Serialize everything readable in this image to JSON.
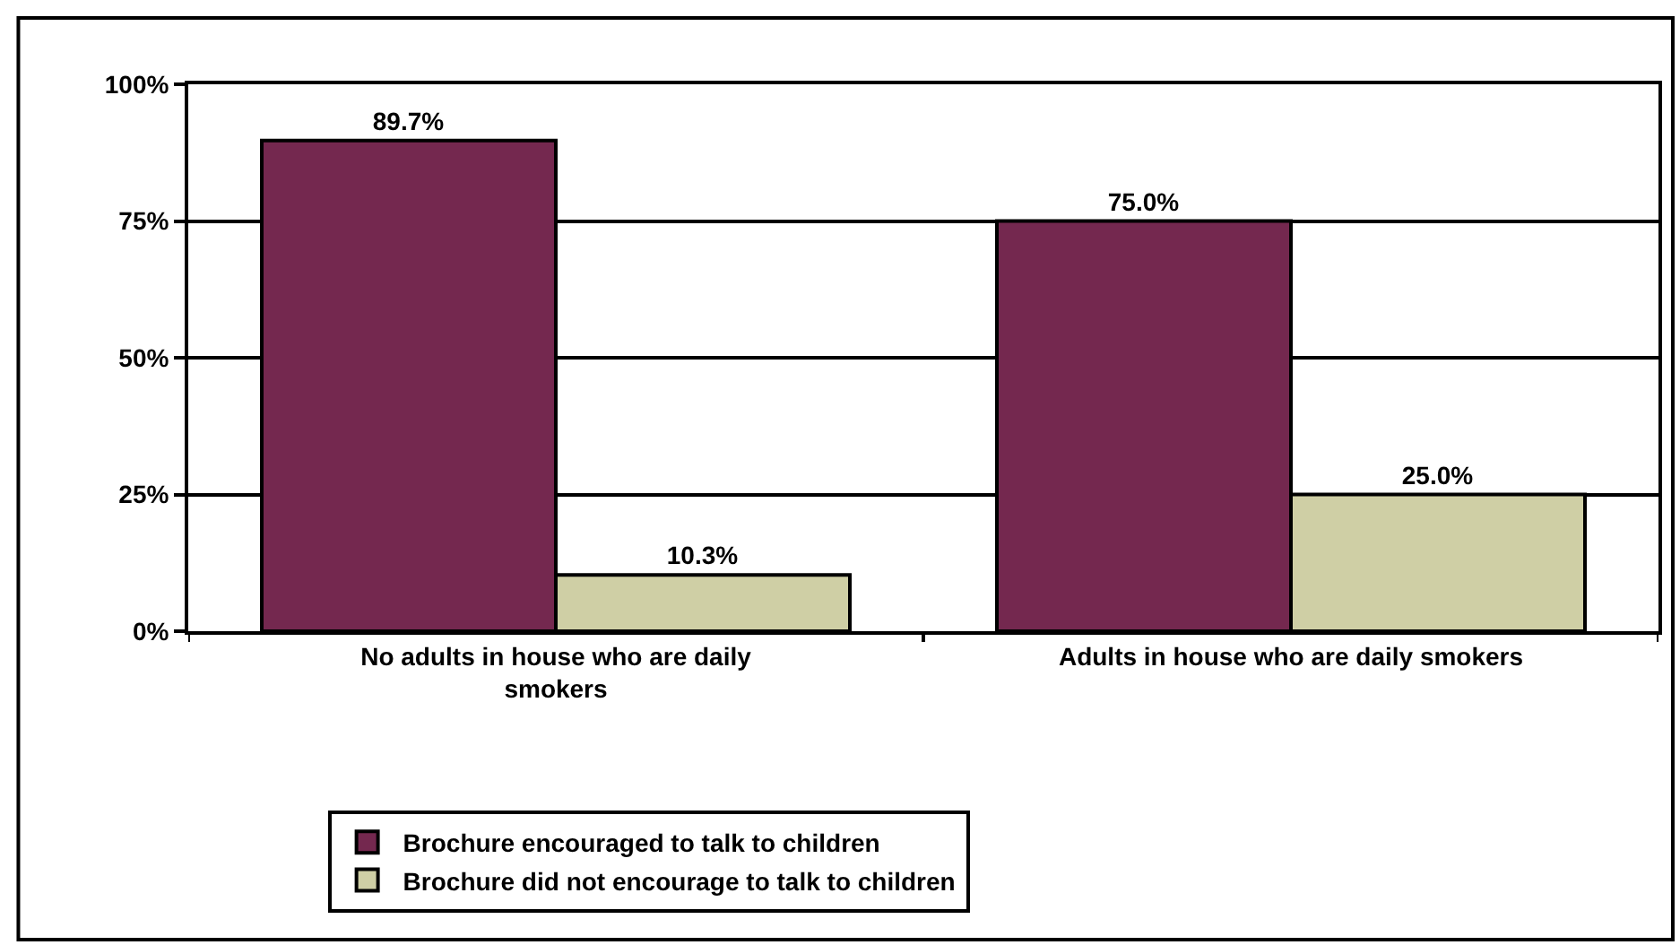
{
  "chart_data": {
    "type": "bar",
    "categories": [
      "No adults in house who are daily smokers",
      "Adults in house who are daily smokers"
    ],
    "series": [
      {
        "name": "Brochure encouraged to talk to children",
        "color": "#74284f",
        "values": [
          89.7,
          75.0
        ],
        "value_labels": [
          "89.7%",
          "75.0%"
        ]
      },
      {
        "name": "Brochure did not encourage to talk to children",
        "color": "#cfcfa5",
        "values": [
          10.3,
          25.0
        ],
        "value_labels": [
          "10.3%",
          "25.0%"
        ]
      }
    ],
    "ylim": [
      0,
      100
    ],
    "yticks": [
      {
        "value": 0,
        "label": "0%"
      },
      {
        "value": 25,
        "label": "25%"
      },
      {
        "value": 50,
        "label": "50%"
      },
      {
        "value": 75,
        "label": "75%"
      },
      {
        "value": 100,
        "label": "100%"
      }
    ],
    "grid": "y",
    "legend": "bottom"
  }
}
